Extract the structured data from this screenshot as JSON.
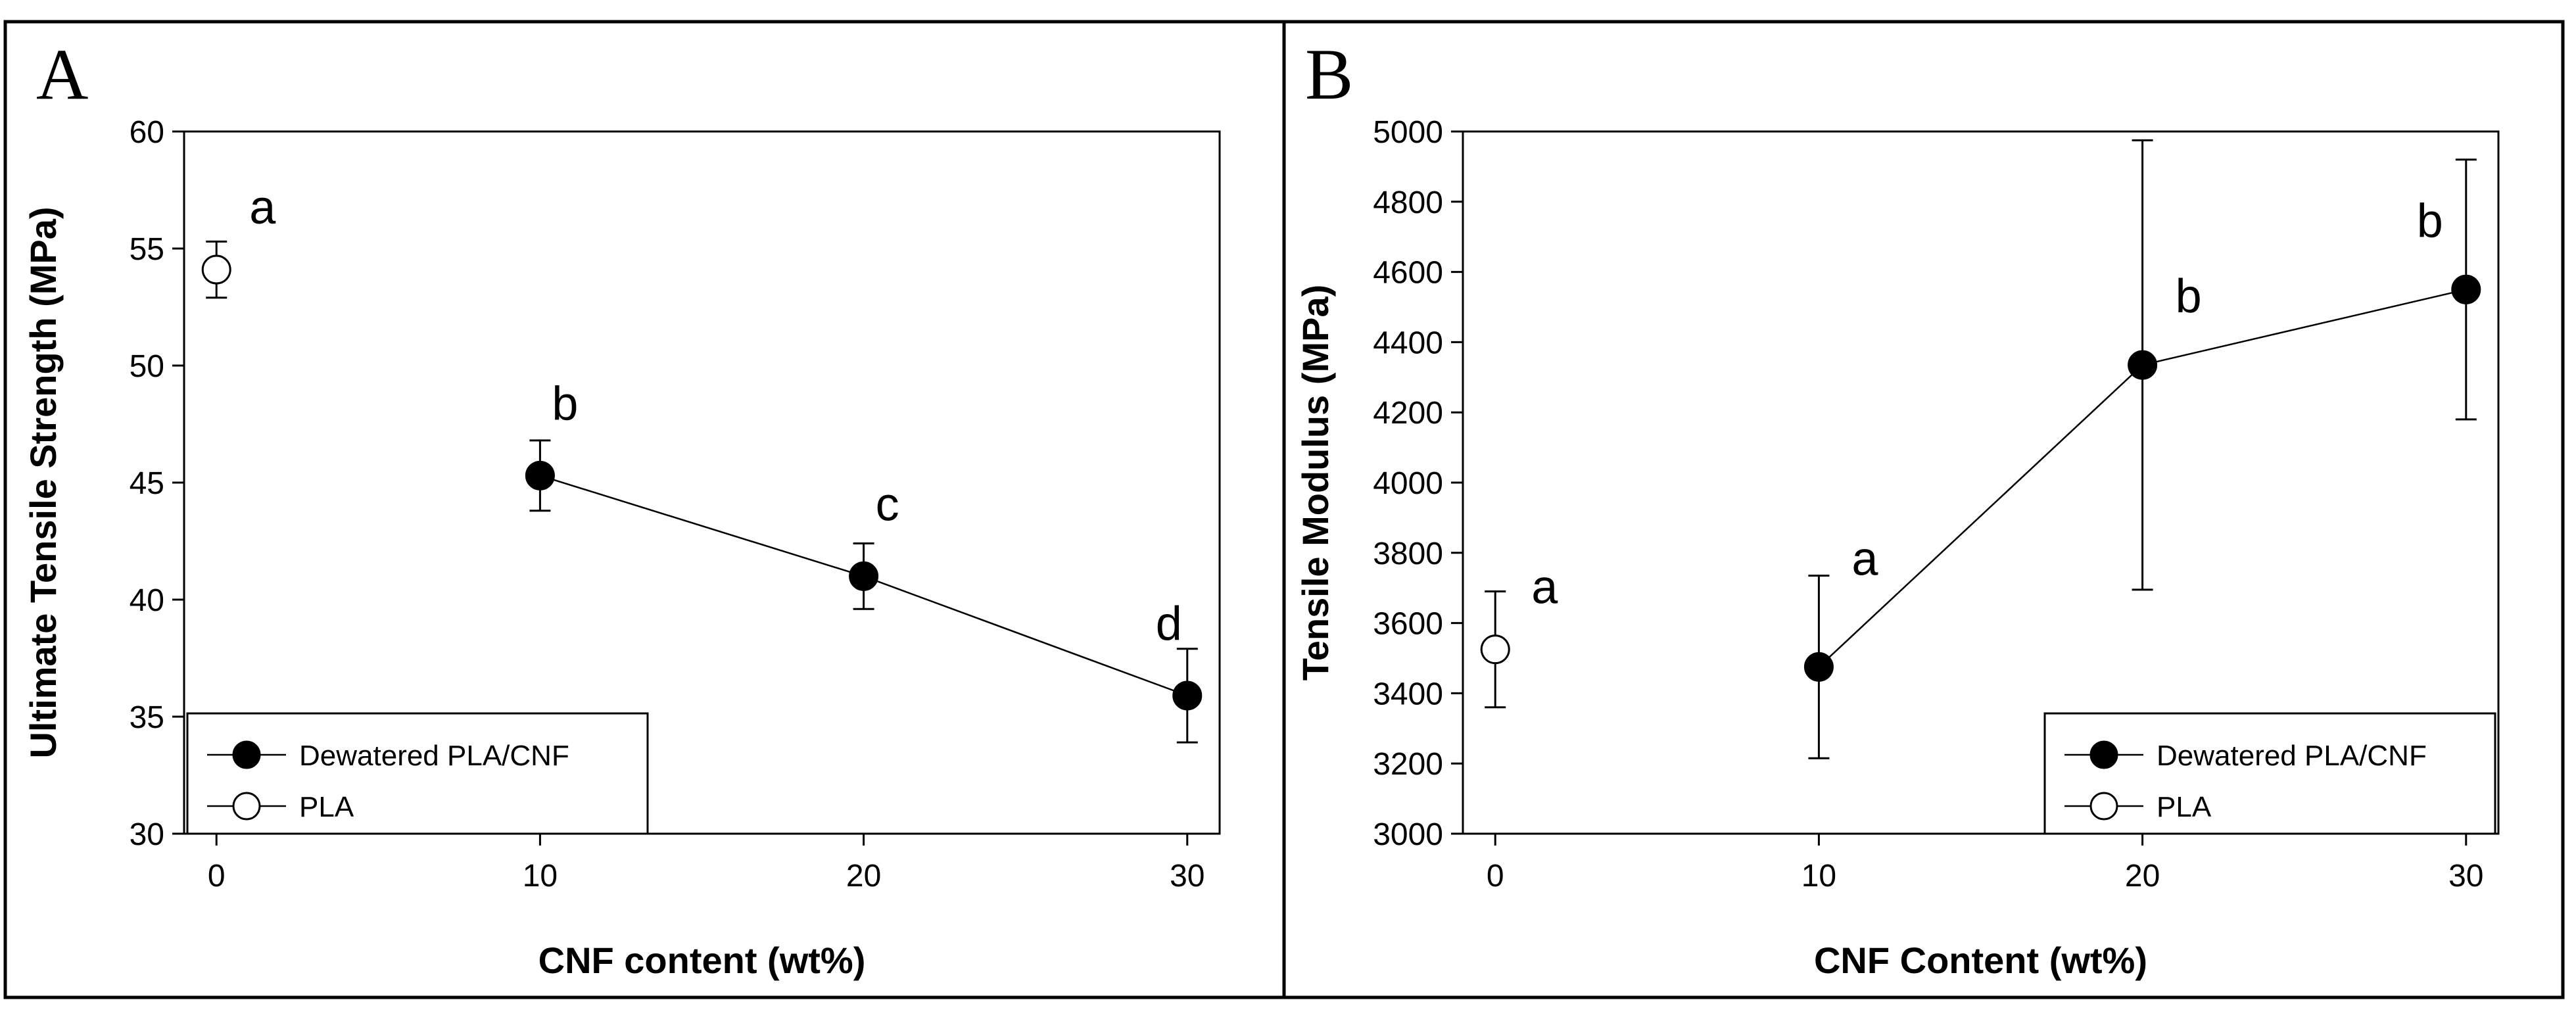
{
  "chart_data": [
    {
      "type": "scatter",
      "panel_label": "A",
      "xlabel": "CNF content (wt%)",
      "ylabel": "Ultimate Tensile Strength (MPa)",
      "xlim": [
        -1,
        31
      ],
      "ylim": [
        30,
        60
      ],
      "xticks": [
        0,
        10,
        20,
        30
      ],
      "yticks": [
        30,
        35,
        40,
        45,
        50,
        55,
        60
      ],
      "legend_position": "bottom-left",
      "series": [
        {
          "name": "Dewatered PLA/CNF",
          "marker": "filled-circle",
          "connected": true,
          "x": [
            10,
            20,
            30
          ],
          "y": [
            45.3,
            41.0,
            35.9
          ],
          "err": [
            1.5,
            1.4,
            2.0
          ],
          "letters": [
            "b",
            "c",
            "d"
          ]
        },
        {
          "name": "PLA",
          "marker": "open-circle",
          "connected": false,
          "x": [
            0
          ],
          "y": [
            54.1
          ],
          "err": [
            1.2
          ],
          "letters": [
            "a"
          ]
        }
      ]
    },
    {
      "type": "scatter",
      "panel_label": "B",
      "xlabel": "CNF Content (wt%)",
      "ylabel": "Tensile Modulus (MPa)",
      "xlim": [
        -1,
        31
      ],
      "ylim": [
        3000,
        5000
      ],
      "xticks": [
        0,
        10,
        20,
        30
      ],
      "yticks": [
        3000,
        3200,
        3400,
        3600,
        3800,
        4000,
        4200,
        4400,
        4600,
        4800,
        5000
      ],
      "legend_position": "bottom-right",
      "series": [
        {
          "name": "Dewatered PLA/CNF",
          "marker": "filled-circle",
          "connected": true,
          "x": [
            10,
            20,
            30
          ],
          "y": [
            3475,
            4335,
            4550
          ],
          "err": [
            260,
            640,
            370
          ],
          "letters": [
            "a",
            "b",
            "b"
          ]
        },
        {
          "name": "PLA",
          "marker": "open-circle",
          "connected": false,
          "x": [
            0
          ],
          "y": [
            3525
          ],
          "err": [
            165
          ],
          "letters": [
            "a"
          ]
        }
      ]
    }
  ]
}
